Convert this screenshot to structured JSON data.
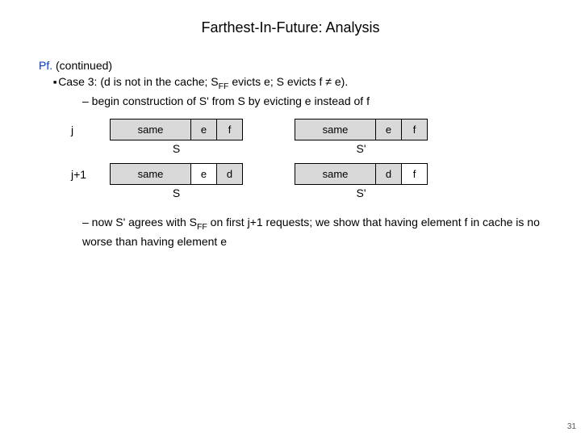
{
  "title": "Farthest-In-Future:  Analysis",
  "pf": {
    "label": "Pf.",
    "cont": "(continued)"
  },
  "case3": {
    "prefix": "Case 3:  (d is not in the cache; S",
    "sub1": "FF",
    "mid": " evicts e; S evicts f ",
    "neq": "≠",
    "suffix": " e)."
  },
  "dash1": "–  begin construction of S' from S by evicting e instead of f",
  "row1": {
    "label": "j",
    "left": {
      "same": "same",
      "c2": "e",
      "c3": "f",
      "cap": "S"
    },
    "right": {
      "same": "same",
      "c2": "e",
      "c3": "f",
      "cap": "S'"
    }
  },
  "row2": {
    "label": "j+1",
    "left": {
      "same": "same",
      "c2": "e",
      "c3": "d",
      "cap": "S"
    },
    "right": {
      "same": "same",
      "c2": "d",
      "c3": "f",
      "cap": "S'"
    }
  },
  "dash2": {
    "p1": "–  now S' agrees with S",
    "sub": "FF",
    "p2": " on first j+1 requests; we show that having element f in cache is no worse than having element e"
  },
  "pagenum": "31",
  "colors": {
    "pf": "#0033cc",
    "cell_gray": "#d9d9d9",
    "bg": "#ffffff"
  }
}
